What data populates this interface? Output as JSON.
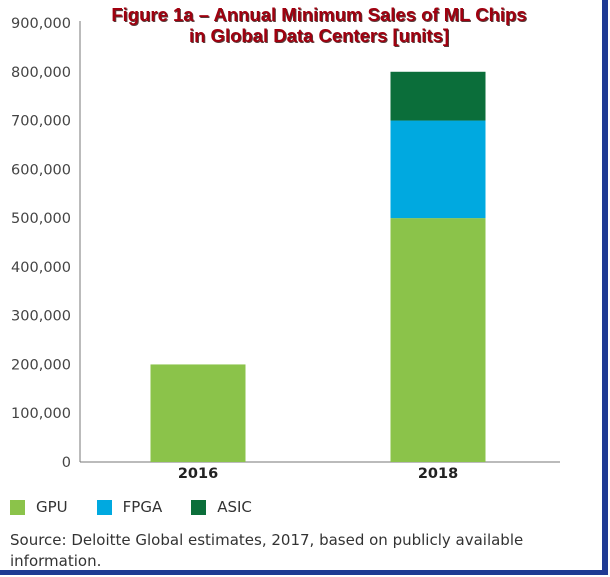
{
  "title_lines": [
    "Figure 1a – Annual Minimum Sales of ML Chips",
    "in Global Data Centers [units]"
  ],
  "source_text": "Source: Deloitte Global estimates, 2017, based on publicly available information.",
  "colors": {
    "gpu": "#8bc34a",
    "fpga": "#00a9e0",
    "asic": "#0b6e3a",
    "title": "#a0000f",
    "border": "#1f3a93"
  },
  "chart_data": {
    "type": "bar",
    "stacked": true,
    "title": "Figure 1a – Annual Minimum Sales of ML Chips in Global Data Centers [units]",
    "categories": [
      "2016",
      "2018"
    ],
    "series": [
      {
        "name": "GPU",
        "values": [
          200000,
          500000
        ],
        "color": "#8bc34a"
      },
      {
        "name": "FPGA",
        "values": [
          0,
          200000
        ],
        "color": "#00a9e0"
      },
      {
        "name": "ASIC",
        "values": [
          0,
          100000
        ],
        "color": "#0b6e3a"
      }
    ],
    "ylim": [
      0,
      900000
    ],
    "yticks": [
      0,
      100000,
      200000,
      300000,
      400000,
      500000,
      600000,
      700000,
      800000,
      900000
    ],
    "ytick_labels": [
      "0",
      "100,000",
      "200,000",
      "300,000",
      "400,000",
      "500,000",
      "600,000",
      "700,000",
      "800,000",
      "900,000"
    ],
    "grid": false,
    "legend_position": "bottom-left",
    "xlabel": "",
    "ylabel": ""
  }
}
